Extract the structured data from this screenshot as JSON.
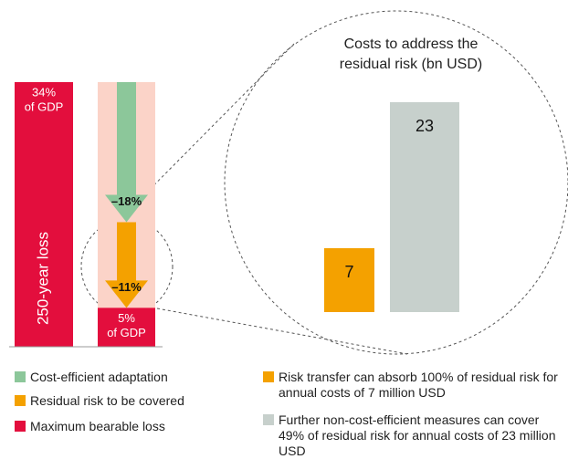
{
  "chart_data": [
    {
      "type": "waterfall",
      "axis_label": "250-year loss",
      "unit": "of GDP",
      "values": [
        34,
        -18,
        -11,
        5
      ],
      "value_labels": [
        "34%",
        "–18%",
        "–11%",
        "5%"
      ],
      "colors": [
        "#e30e3d",
        "#8cc79a",
        "#f4a100",
        "#e30e3d"
      ],
      "ylim": [
        0,
        34
      ]
    },
    {
      "type": "bar",
      "title": "Costs to address the residual risk (bn USD)",
      "values": [
        7,
        23
      ],
      "colors": [
        "#f4a100",
        "#c7d0cc"
      ],
      "ylim": [
        0,
        23
      ]
    }
  ],
  "legend": [
    {
      "name": "Cost-efficient adaptation",
      "color": "#8cc79a"
    },
    {
      "name": "Residual risk to be covered",
      "color": "#f4a100"
    },
    {
      "name": "Maximum bearable loss",
      "color": "#e30e3d"
    },
    {
      "name": "Risk transfer can absorb 100% of residual risk for annual costs of 7 million USD",
      "color": "#f4a100"
    },
    {
      "name": "Further non-cost-efficient measures can cover 49% of residual risk for annual costs of 23 million USD",
      "color": "#c7d0cc"
    }
  ]
}
